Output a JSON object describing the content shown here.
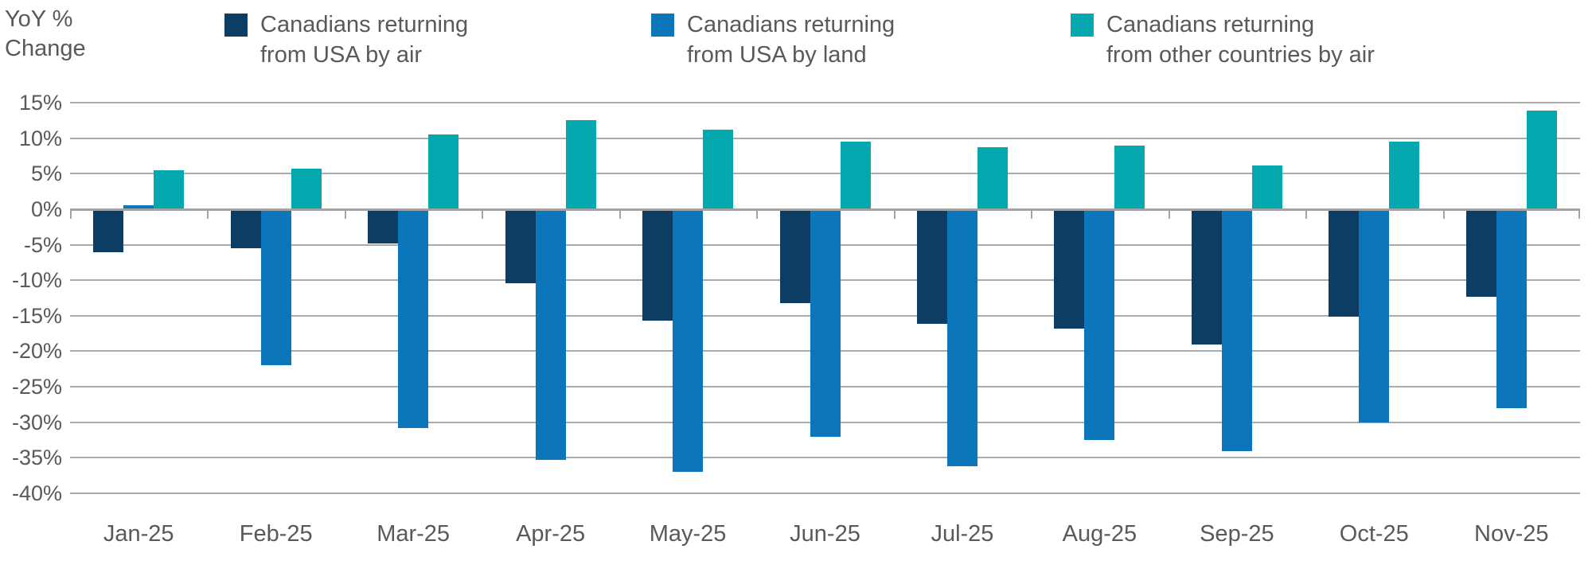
{
  "y_axis_title_lines": [
    "YoY %",
    "Change"
  ],
  "colors": {
    "air": "#0e3d64",
    "land": "#0b76ba",
    "other": "#02a8ad",
    "gridline": "#aaaaaa",
    "axis_text": "#595959"
  },
  "legend": [
    {
      "lines": [
        "Canadians returning",
        "from USA by air"
      ],
      "color": "#0e3d64"
    },
    {
      "lines": [
        "Canadians returning",
        "from USA by land"
      ],
      "color": "#0b76ba"
    },
    {
      "lines": [
        "Canadians returning",
        "from other countries by air"
      ],
      "color": "#02a8ad"
    }
  ],
  "chart_data": {
    "type": "bar",
    "title": "",
    "ylabel": "YoY % Change",
    "xlabel": "",
    "categories": [
      "Jan-25",
      "Feb-25",
      "Mar-25",
      "Apr-25",
      "May-25",
      "Jun-25",
      "Jul-25",
      "Aug-25",
      "Sep-25",
      "Oct-25",
      "Nov-25"
    ],
    "series": [
      {
        "name": "Canadians returning from USA by air",
        "color": "#0e3d64",
        "values": [
          -6.0,
          -5.5,
          -4.8,
          -10.4,
          -15.7,
          -13.2,
          -16.1,
          -16.8,
          -19.0,
          -15.1,
          -12.3
        ]
      },
      {
        "name": "Canadians returning from USA by land",
        "color": "#0b76ba",
        "values": [
          0.5,
          -22.0,
          -30.8,
          -35.3,
          -37.0,
          -32.0,
          -36.2,
          -32.5,
          -34.0,
          -30.0,
          -28.0
        ]
      },
      {
        "name": "Canadians returning from other countries by air",
        "color": "#02a8ad",
        "values": [
          5.5,
          5.7,
          10.5,
          12.5,
          11.2,
          9.5,
          8.7,
          9.0,
          6.1,
          9.5,
          13.9
        ]
      }
    ],
    "ylim": [
      -40,
      15
    ],
    "ytick_step": 5,
    "ytick_labels": [
      "15%",
      "10%",
      "5%",
      "0%",
      "-5%",
      "-10%",
      "-15%",
      "-20%",
      "-25%",
      "-30%",
      "-35%",
      "-40%"
    ],
    "grid": true,
    "legend_position": "top"
  }
}
